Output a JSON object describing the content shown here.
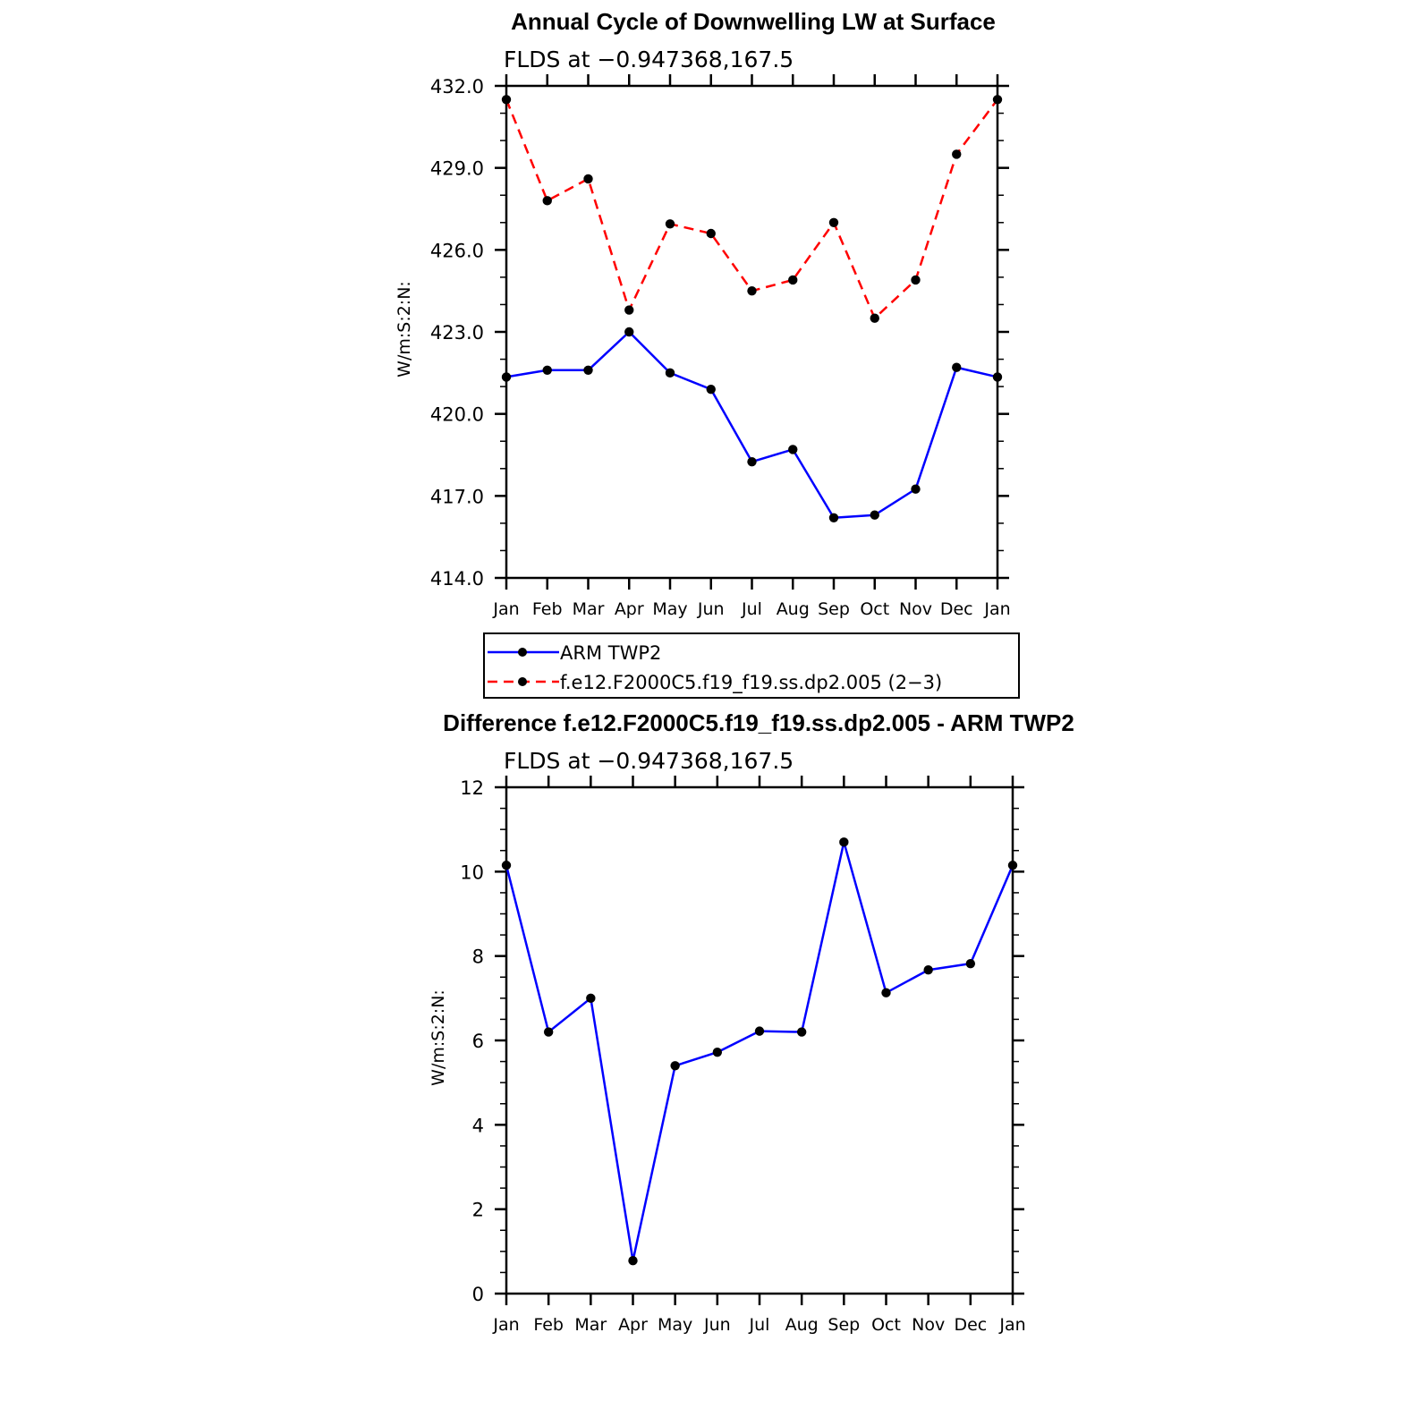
{
  "chart_data": [
    {
      "type": "line",
      "title": "Annual Cycle of Downwelling LW at Surface",
      "subtitle": "FLDS at −0.947368,167.5",
      "ylabel": "W/m:S:2:N:",
      "ylim": [
        414.0,
        432.0
      ],
      "yticks": [
        "414.0",
        "417.0",
        "420.0",
        "423.0",
        "426.0",
        "429.0",
        "432.0"
      ],
      "categories": [
        "Jan",
        "Feb",
        "Mar",
        "Apr",
        "May",
        "Jun",
        "Jul",
        "Aug",
        "Sep",
        "Oct",
        "Nov",
        "Dec",
        "Jan"
      ],
      "series": [
        {
          "name": "ARM TWP2",
          "color": "#0000ff",
          "style": "solid",
          "values": [
            421.35,
            421.6,
            421.6,
            423.0,
            421.5,
            420.9,
            418.25,
            418.7,
            416.2,
            416.3,
            417.25,
            421.7,
            421.35
          ]
        },
        {
          "name": "f.e12.F2000C5.f19_f19.ss.dp2.005 (2−3)",
          "color": "#ff0000",
          "style": "dashed",
          "values": [
            431.5,
            427.8,
            428.6,
            423.8,
            426.95,
            426.6,
            424.5,
            424.9,
            427.0,
            423.5,
            424.9,
            429.5,
            431.5
          ]
        }
      ],
      "legend": "bottom"
    },
    {
      "type": "line",
      "title": "Difference f.e12.F2000C5.f19_f19.ss.dp2.005 - ARM TWP2",
      "subtitle": "FLDS at −0.947368,167.5",
      "ylabel": "W/m:S:2:N:",
      "ylim": [
        0,
        12
      ],
      "yticks": [
        "0",
        "2",
        "4",
        "6",
        "8",
        "10",
        "12"
      ],
      "categories": [
        "Jan",
        "Feb",
        "Mar",
        "Apr",
        "May",
        "Jun",
        "Jul",
        "Aug",
        "Sep",
        "Oct",
        "Nov",
        "Dec",
        "Jan"
      ],
      "series": [
        {
          "name": "Difference",
          "color": "#0000ff",
          "style": "solid",
          "values": [
            10.15,
            6.2,
            7.0,
            0.78,
            5.4,
            5.72,
            6.22,
            6.2,
            10.7,
            7.13,
            7.67,
            7.82,
            10.15
          ]
        }
      ]
    }
  ]
}
